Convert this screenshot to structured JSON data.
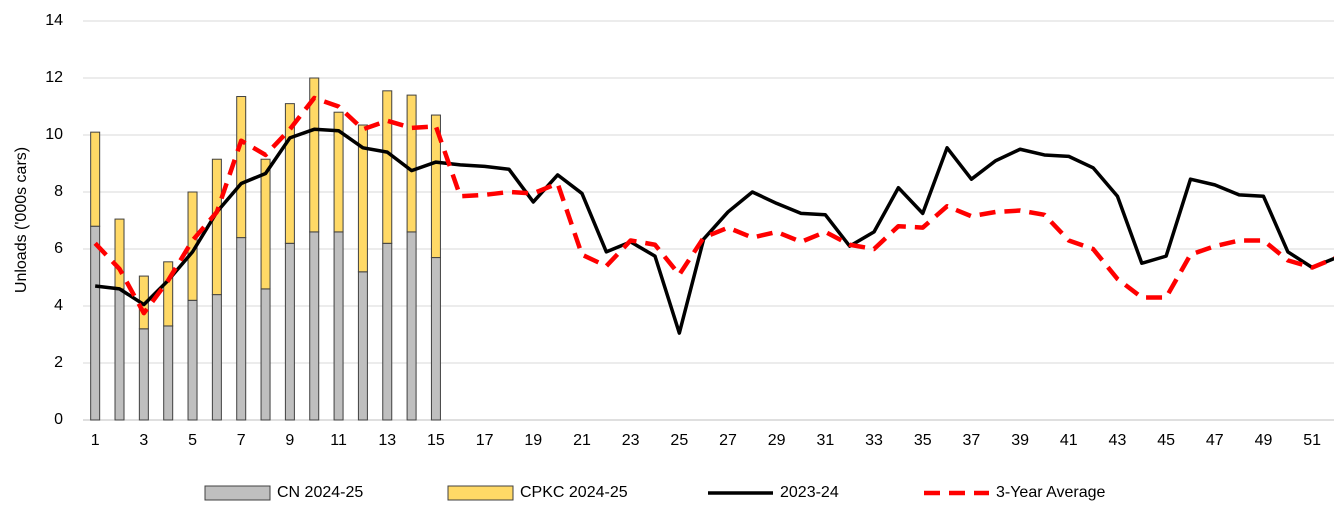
{
  "chart_data": {
    "type": "combo",
    "stacked": true,
    "grid": true,
    "ylabel": "Unloads ('000s cars)",
    "ylim": [
      0,
      14
    ],
    "yticks": [
      0,
      2,
      4,
      6,
      8,
      10,
      12,
      14
    ],
    "categories": [
      "1",
      null,
      "3",
      null,
      "5",
      null,
      "7",
      null,
      "9",
      null,
      "11",
      null,
      "13",
      null,
      "15",
      null,
      "17",
      null,
      "19",
      null,
      "21",
      null,
      "23",
      null,
      "25",
      null,
      "27",
      null,
      "29",
      null,
      "31",
      null,
      "33",
      null,
      "35",
      null,
      "37",
      null,
      "39",
      null,
      "41",
      null,
      "43",
      null,
      "45",
      null,
      "47",
      null,
      "49",
      null,
      "51",
      null
    ],
    "legend": "bottom",
    "series": [
      {
        "name": "CN 2024-25",
        "type": "bar",
        "color": "#bfbfbf",
        "values": [
          6.8,
          4.6,
          3.2,
          3.3,
          4.2,
          4.4,
          6.4,
          4.6,
          6.2,
          6.6,
          6.6,
          5.2,
          6.2,
          6.6,
          5.7,
          null,
          null,
          null,
          null,
          null,
          null,
          null,
          null,
          null,
          null,
          null,
          null,
          null,
          null,
          null,
          null,
          null,
          null,
          null,
          null,
          null,
          null,
          null,
          null,
          null,
          null,
          null,
          null,
          null,
          null,
          null,
          null,
          null,
          null,
          null,
          null,
          null
        ]
      },
      {
        "name": "CPKC 2024-25",
        "type": "bar",
        "color": "#ffd966",
        "values": [
          3.3,
          2.45,
          1.85,
          2.25,
          3.8,
          4.75,
          4.95,
          4.55,
          4.9,
          5.4,
          4.2,
          5.15,
          5.35,
          4.8,
          5.0,
          null,
          null,
          null,
          null,
          null,
          null,
          null,
          null,
          null,
          null,
          null,
          null,
          null,
          null,
          null,
          null,
          null,
          null,
          null,
          null,
          null,
          null,
          null,
          null,
          null,
          null,
          null,
          null,
          null,
          null,
          null,
          null,
          null,
          null,
          null,
          null,
          null
        ]
      },
      {
        "name": "2023-24",
        "type": "line",
        "color": "#000000",
        "dashed": false,
        "values": [
          4.7,
          4.6,
          4.05,
          4.9,
          5.9,
          7.3,
          8.3,
          8.65,
          9.9,
          10.2,
          10.15,
          9.55,
          9.4,
          8.75,
          9.05,
          8.95,
          8.9,
          8.8,
          7.65,
          8.6,
          7.95,
          5.9,
          6.25,
          5.75,
          3.05,
          6.35,
          7.3,
          8.0,
          7.6,
          7.25,
          7.2,
          6.1,
          6.6,
          8.15,
          7.25,
          9.55,
          8.45,
          9.1,
          9.5,
          9.3,
          9.25,
          8.85,
          7.85,
          5.5,
          5.75,
          8.45,
          8.25,
          7.9,
          7.85,
          5.9,
          5.35,
          5.7
        ]
      },
      {
        "name": "3-Year Average",
        "type": "line",
        "color": "#ff0000",
        "dashed": true,
        "values": [
          6.2,
          5.3,
          3.75,
          4.9,
          6.3,
          7.3,
          9.8,
          9.3,
          10.2,
          11.3,
          11.0,
          10.2,
          10.5,
          10.25,
          10.3,
          7.85,
          7.9,
          8.0,
          7.95,
          8.3,
          5.8,
          5.4,
          6.3,
          6.15,
          5.1,
          6.4,
          6.75,
          6.4,
          6.6,
          6.25,
          6.6,
          6.15,
          6.0,
          6.8,
          6.75,
          7.5,
          7.15,
          7.3,
          7.35,
          7.2,
          6.3,
          6.0,
          4.95,
          4.3,
          4.3,
          5.8,
          6.1,
          6.3,
          6.3,
          5.6,
          5.35,
          5.7
        ]
      }
    ]
  }
}
